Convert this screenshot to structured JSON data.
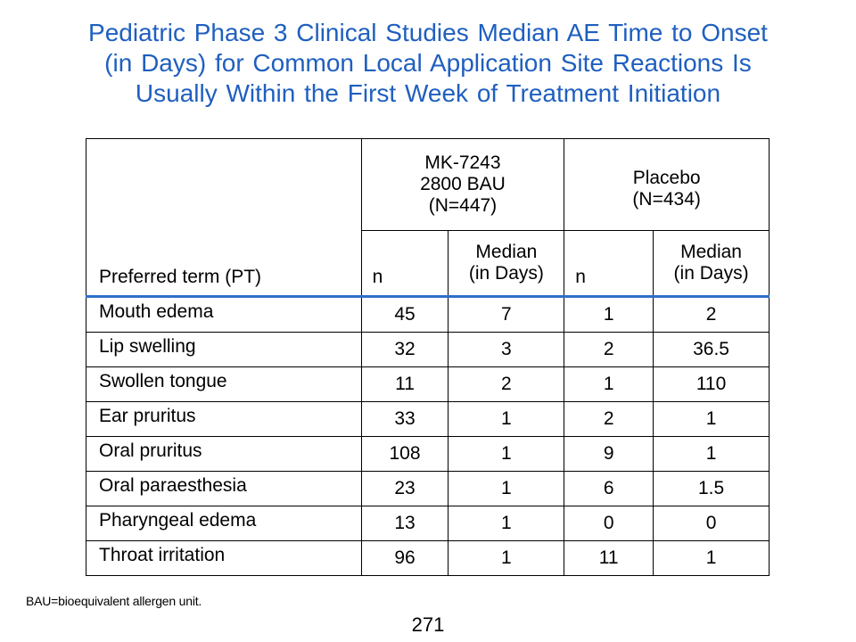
{
  "title": {
    "line1": "Pediatric Phase 3 Clinical Studies Median AE Time to Onset",
    "line2": "(in Days) for Common Local Application Site Reactions Is",
    "line3": "Usually Within the First Week of Treatment Initiation"
  },
  "table": {
    "term_header": "Preferred term (PT)",
    "group1": {
      "line1": "MK-7243",
      "line2": "2800 BAU",
      "line3": "(N=447)"
    },
    "group2": {
      "line1": "Placebo",
      "line2": "(N=434)"
    },
    "sub_n": "n",
    "sub_median_line1": "Median",
    "sub_median_line2": "(in Days)",
    "rows": [
      {
        "term": "Mouth edema",
        "n1": "45",
        "m1": "7",
        "n2": "1",
        "m2": "2"
      },
      {
        "term": "Lip swelling",
        "n1": "32",
        "m1": "3",
        "n2": "2",
        "m2": "36.5"
      },
      {
        "term": "Swollen tongue",
        "n1": "11",
        "m1": "2",
        "n2": "1",
        "m2": "110"
      },
      {
        "term": "Ear pruritus",
        "n1": "33",
        "m1": "1",
        "n2": "2",
        "m2": "1"
      },
      {
        "term": "Oral pruritus",
        "n1": "108",
        "m1": "1",
        "n2": "9",
        "m2": "1"
      },
      {
        "term": "Oral paraesthesia",
        "n1": "23",
        "m1": "1",
        "n2": "6",
        "m2": "1.5"
      },
      {
        "term": "Pharyngeal edema",
        "n1": "13",
        "m1": "1",
        "n2": "0",
        "m2": "0"
      },
      {
        "term": "Throat irritation",
        "n1": "96",
        "m1": "1",
        "n2": "11",
        "m2": "1"
      }
    ]
  },
  "footnote": "BAU=bioequivalent allergen unit.",
  "page_number": "271",
  "colors": {
    "title": "#1f5fbf",
    "header_rule": "#2e6fc7"
  }
}
